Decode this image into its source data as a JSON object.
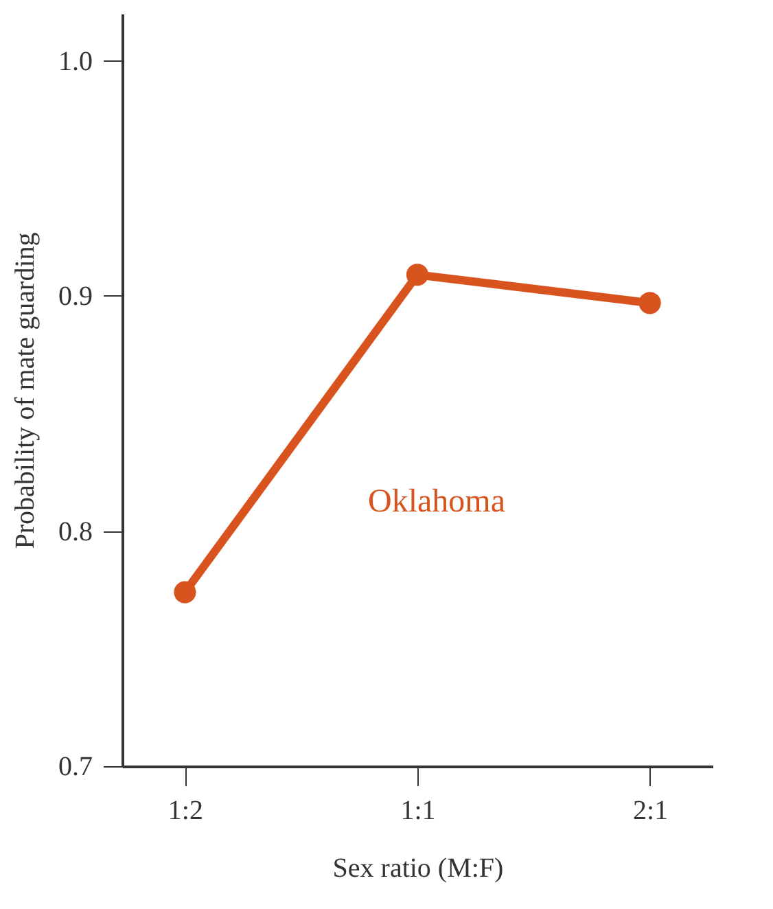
{
  "chart_data": {
    "type": "line",
    "xlabel": "Sex ratio (M:F)",
    "ylabel": "Probability of mate guarding",
    "categories": [
      "1:2",
      "1:1",
      "2:1"
    ],
    "series": [
      {
        "name": "Oklahoma",
        "color": "#d9531e",
        "values": [
          0.774,
          0.909,
          0.897
        ]
      }
    ],
    "ylim": [
      0.7,
      1.02
    ],
    "yticks": [
      {
        "value": 0.7,
        "label": "0.7"
      },
      {
        "value": 0.8,
        "label": "0.8"
      },
      {
        "value": 0.9,
        "label": "0.9"
      },
      {
        "value": 1.0,
        "label": "1.0"
      }
    ],
    "marker": "circle",
    "line_style": "solid",
    "grid": false,
    "legend": false
  }
}
